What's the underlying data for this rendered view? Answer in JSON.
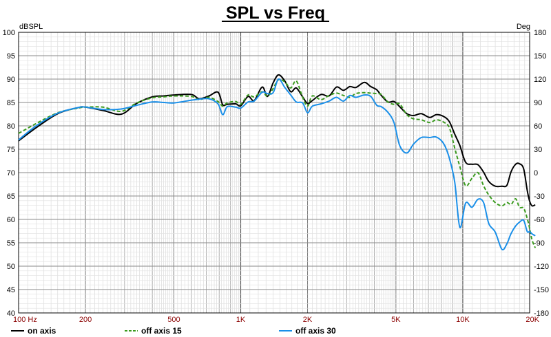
{
  "chart_data": {
    "type": "line",
    "title": "SPL vs Freq",
    "ylabel": "dBSPL",
    "y2label": "Deg",
    "xscale": "log",
    "xlim": [
      100,
      20000
    ],
    "ylim": [
      40,
      100
    ],
    "y2lim": [
      -180,
      180
    ],
    "grid": true,
    "legend_position": "bottom",
    "x_tick_labels": [
      {
        "value": 100,
        "label": "100  Hz"
      },
      {
        "value": 200,
        "label": "200"
      },
      {
        "value": 500,
        "label": "500"
      },
      {
        "value": 1000,
        "label": "1K"
      },
      {
        "value": 2000,
        "label": "2K"
      },
      {
        "value": 5000,
        "label": "5K"
      },
      {
        "value": 10000,
        "label": "10K"
      },
      {
        "value": 20000,
        "label": "20K"
      }
    ],
    "y_ticks": [
      100,
      95,
      90,
      85,
      80,
      75,
      70,
      65,
      60,
      55,
      50,
      45,
      40
    ],
    "y2_ticks": [
      180,
      150,
      120,
      90,
      60,
      30,
      0,
      -30,
      -60,
      -90,
      -120,
      -150,
      -180
    ],
    "series": [
      {
        "name": "on axis",
        "color": "#000000",
        "dash": "solid",
        "points": [
          [
            100,
            76.8
          ],
          [
            120,
            79.6
          ],
          [
            150,
            82.6
          ],
          [
            185,
            83.9
          ],
          [
            200,
            84
          ],
          [
            240,
            83.3
          ],
          [
            290,
            82.5
          ],
          [
            340,
            84.8
          ],
          [
            400,
            86.2
          ],
          [
            450,
            86.4
          ],
          [
            500,
            86.6
          ],
          [
            600,
            86.7
          ],
          [
            650,
            85.8
          ],
          [
            720,
            86.4
          ],
          [
            790,
            87.2
          ],
          [
            830,
            84.5
          ],
          [
            870,
            84.6
          ],
          [
            950,
            84.7
          ],
          [
            1000,
            84.3
          ],
          [
            1080,
            86.3
          ],
          [
            1150,
            85.4
          ],
          [
            1250,
            88.3
          ],
          [
            1320,
            86.3
          ],
          [
            1400,
            89.2
          ],
          [
            1480,
            90.9
          ],
          [
            1580,
            89.6
          ],
          [
            1680,
            87.3
          ],
          [
            1780,
            88.1
          ],
          [
            1900,
            86.2
          ],
          [
            2000,
            84.8
          ],
          [
            2100,
            85.4
          ],
          [
            2300,
            86.7
          ],
          [
            2500,
            86.4
          ],
          [
            2700,
            88.3
          ],
          [
            2900,
            87.6
          ],
          [
            3100,
            88.4
          ],
          [
            3300,
            88.2
          ],
          [
            3600,
            89.3
          ],
          [
            3850,
            88.4
          ],
          [
            4100,
            87.7
          ],
          [
            4300,
            86.5
          ],
          [
            4600,
            85.1
          ],
          [
            4900,
            85.2
          ],
          [
            5200,
            84.1
          ],
          [
            5600,
            82.6
          ],
          [
            6000,
            82.2
          ],
          [
            6500,
            82.6
          ],
          [
            7100,
            81.8
          ],
          [
            7600,
            82.4
          ],
          [
            8200,
            82.0
          ],
          [
            8700,
            80.9
          ],
          [
            9200,
            78.2
          ],
          [
            9700,
            75.8
          ],
          [
            10300,
            72.2
          ],
          [
            11000,
            71.8
          ],
          [
            11700,
            71.7
          ],
          [
            12400,
            70.1
          ],
          [
            13100,
            68.1
          ],
          [
            14000,
            67.1
          ],
          [
            15000,
            67.1
          ],
          [
            15800,
            67.3
          ],
          [
            16500,
            70.2
          ],
          [
            17300,
            71.8
          ],
          [
            18000,
            71.9
          ],
          [
            18800,
            70.8
          ],
          [
            19500,
            66.2
          ],
          [
            20000,
            63.9
          ],
          [
            20500,
            62.9
          ],
          [
            21200,
            63.1
          ]
        ]
      },
      {
        "name": "off axis 15",
        "color": "#3a9a1e",
        "dash": "dashed",
        "points": [
          [
            100,
            78.4
          ],
          [
            120,
            80.5
          ],
          [
            150,
            82.8
          ],
          [
            185,
            83.8
          ],
          [
            200,
            84
          ],
          [
            240,
            84.0
          ],
          [
            290,
            83.1
          ],
          [
            340,
            84.9
          ],
          [
            400,
            86.0
          ],
          [
            450,
            86.2
          ],
          [
            500,
            86.4
          ],
          [
            600,
            86.3
          ],
          [
            650,
            85.6
          ],
          [
            720,
            86.1
          ],
          [
            790,
            85.2
          ],
          [
            830,
            84.2
          ],
          [
            870,
            84.9
          ],
          [
            950,
            85.2
          ],
          [
            1000,
            84.6
          ],
          [
            1080,
            86.6
          ],
          [
            1150,
            86.2
          ],
          [
            1250,
            87.3
          ],
          [
            1320,
            86.3
          ],
          [
            1400,
            88.0
          ],
          [
            1480,
            89.9
          ],
          [
            1580,
            89.4
          ],
          [
            1680,
            88.1
          ],
          [
            1780,
            89.6
          ],
          [
            1900,
            86.1
          ],
          [
            2000,
            84.2
          ],
          [
            2100,
            86.4
          ],
          [
            2300,
            85.6
          ],
          [
            2500,
            86.5
          ],
          [
            2700,
            87.0
          ],
          [
            2900,
            86.5
          ],
          [
            3100,
            86.1
          ],
          [
            3300,
            86.9
          ],
          [
            3600,
            87.1
          ],
          [
            3850,
            87.0
          ],
          [
            4100,
            86.9
          ],
          [
            4300,
            86.7
          ],
          [
            4600,
            85.1
          ],
          [
            4900,
            84.6
          ],
          [
            5200,
            84.7
          ],
          [
            5600,
            82.4
          ],
          [
            6000,
            81.5
          ],
          [
            6500,
            81.3
          ],
          [
            7100,
            80.7
          ],
          [
            7600,
            81.3
          ],
          [
            8200,
            80.8
          ],
          [
            8700,
            79.6
          ],
          [
            9200,
            75.2
          ],
          [
            9700,
            71.3
          ],
          [
            10300,
            67.2
          ],
          [
            11000,
            68.8
          ],
          [
            11700,
            70.0
          ],
          [
            12400,
            67.2
          ],
          [
            13100,
            65.2
          ],
          [
            14000,
            63.6
          ],
          [
            15000,
            62.9
          ],
          [
            15800,
            63.6
          ],
          [
            16500,
            63.2
          ],
          [
            17300,
            64.4
          ],
          [
            18000,
            62.6
          ],
          [
            18800,
            62.4
          ],
          [
            19500,
            60.2
          ],
          [
            20000,
            58.1
          ],
          [
            20500,
            55.6
          ],
          [
            21200,
            53.9
          ]
        ]
      },
      {
        "name": "off axis 30",
        "color": "#1a8fe8",
        "dash": "solid",
        "points": [
          [
            100,
            77.0
          ],
          [
            120,
            80.0
          ],
          [
            150,
            82.7
          ],
          [
            185,
            83.9
          ],
          [
            200,
            84
          ],
          [
            240,
            83.5
          ],
          [
            290,
            83.6
          ],
          [
            340,
            84.4
          ],
          [
            400,
            85.1
          ],
          [
            450,
            85.0
          ],
          [
            500,
            84.9
          ],
          [
            600,
            85.5
          ],
          [
            650,
            85.7
          ],
          [
            720,
            85.8
          ],
          [
            790,
            84.7
          ],
          [
            830,
            82.4
          ],
          [
            870,
            84.1
          ],
          [
            950,
            84.0
          ],
          [
            1000,
            83.8
          ],
          [
            1080,
            85.1
          ],
          [
            1150,
            85.3
          ],
          [
            1250,
            87.2
          ],
          [
            1320,
            86.9
          ],
          [
            1400,
            87.1
          ],
          [
            1480,
            90.0
          ],
          [
            1580,
            88.2
          ],
          [
            1680,
            86.6
          ],
          [
            1780,
            85.1
          ],
          [
            1900,
            84.9
          ],
          [
            2000,
            82.8
          ],
          [
            2100,
            84.2
          ],
          [
            2300,
            84.7
          ],
          [
            2500,
            85.3
          ],
          [
            2700,
            86.1
          ],
          [
            2900,
            85.3
          ],
          [
            3100,
            86.5
          ],
          [
            3300,
            86.1
          ],
          [
            3600,
            86.6
          ],
          [
            3850,
            86.3
          ],
          [
            4100,
            84.4
          ],
          [
            4300,
            84.1
          ],
          [
            4600,
            82.9
          ],
          [
            4900,
            80.7
          ],
          [
            5200,
            75.8
          ],
          [
            5600,
            74.2
          ],
          [
            6000,
            76.1
          ],
          [
            6500,
            77.5
          ],
          [
            7100,
            77.5
          ],
          [
            7600,
            77.6
          ],
          [
            8200,
            76.2
          ],
          [
            8700,
            73.1
          ],
          [
            9200,
            67.9
          ],
          [
            9700,
            58.3
          ],
          [
            10300,
            63.5
          ],
          [
            11000,
            62.6
          ],
          [
            11700,
            64.3
          ],
          [
            12400,
            63.6
          ],
          [
            13100,
            59.1
          ],
          [
            14000,
            57.3
          ],
          [
            15000,
            53.6
          ],
          [
            15800,
            54.8
          ],
          [
            16500,
            57.0
          ],
          [
            17300,
            58.6
          ],
          [
            18000,
            59.4
          ],
          [
            18800,
            59.8
          ],
          [
            19500,
            57.4
          ],
          [
            20000,
            57.4
          ],
          [
            20500,
            56.9
          ],
          [
            21200,
            56.5
          ]
        ]
      }
    ]
  }
}
